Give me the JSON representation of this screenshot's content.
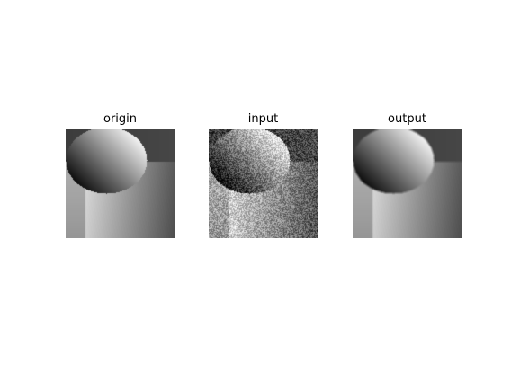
{
  "figure": {
    "panels": [
      {
        "title": "origin",
        "noise": 0,
        "blur": 0
      },
      {
        "title": "input",
        "noise": 0.35,
        "blur": 0
      },
      {
        "title": "output",
        "noise": 0,
        "blur": 1
      }
    ]
  }
}
